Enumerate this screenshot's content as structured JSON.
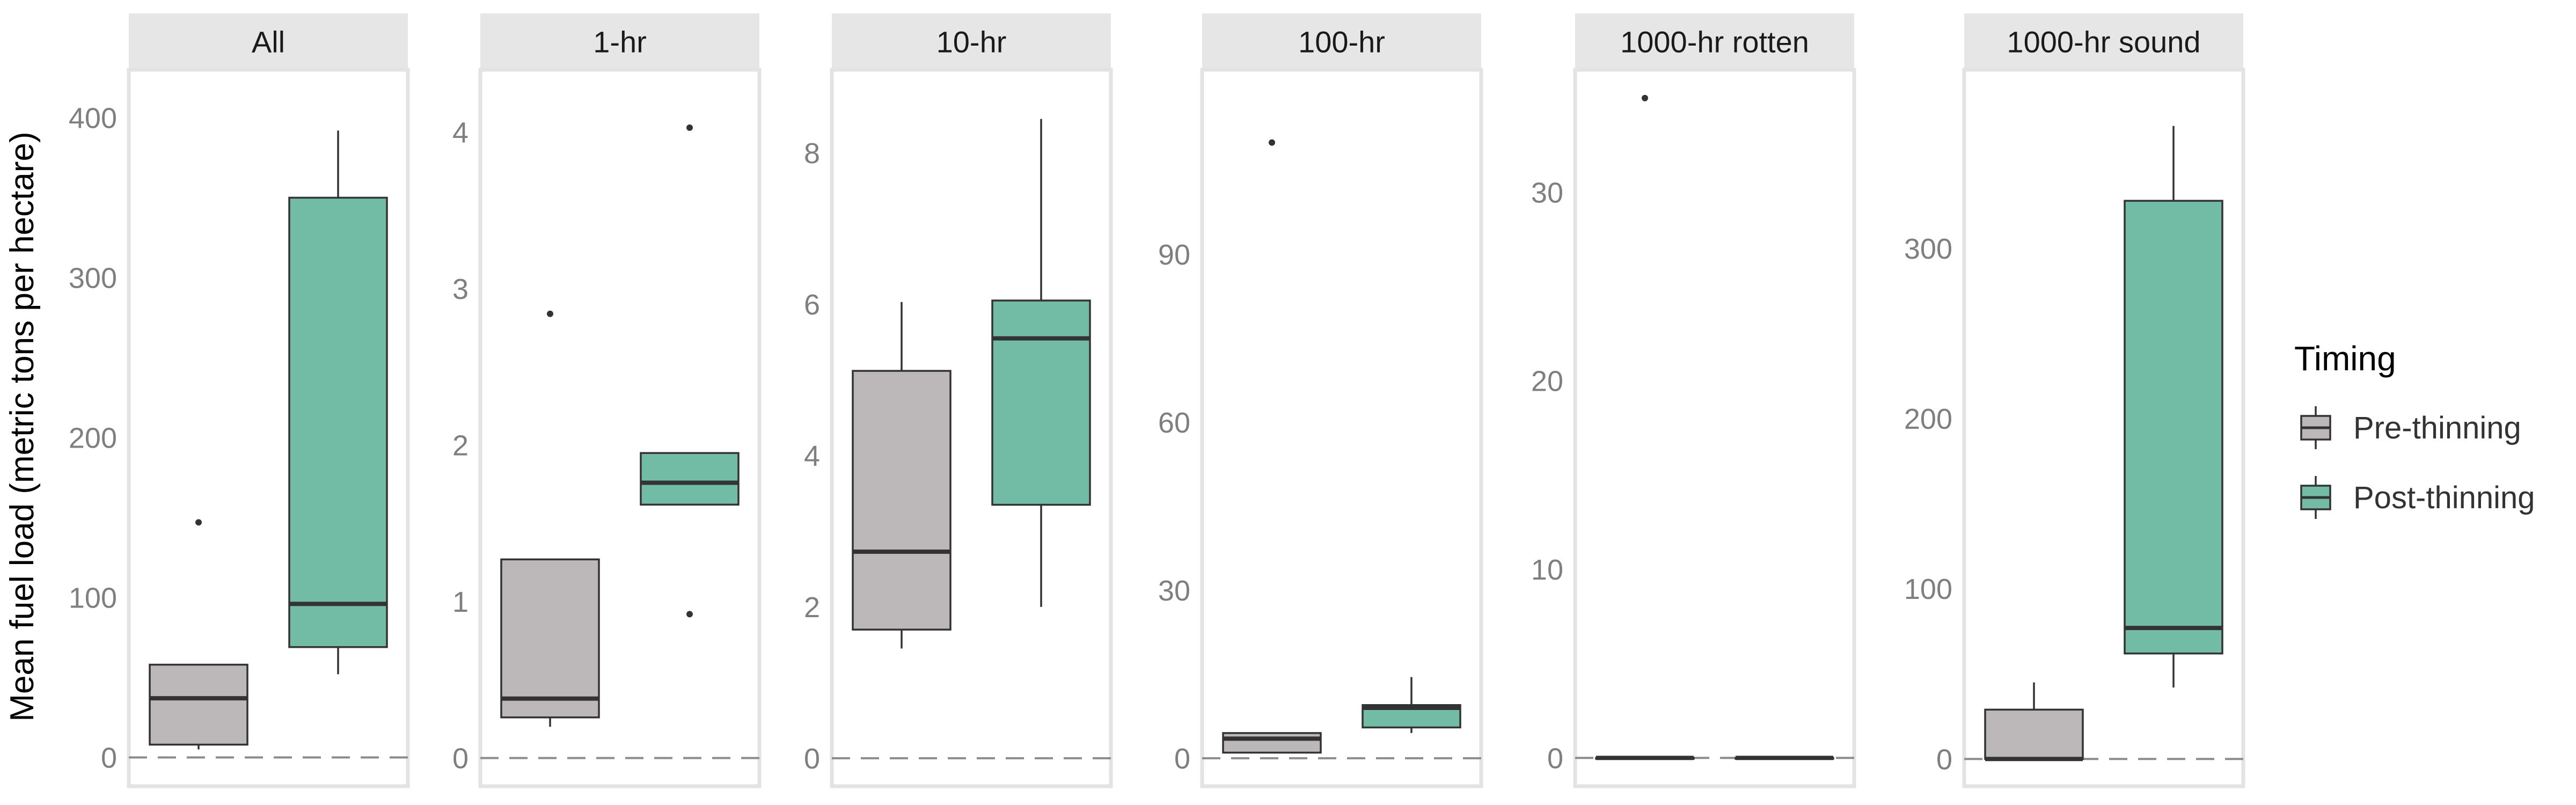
{
  "chart_data": {
    "type": "box",
    "ylabel": "Mean fuel load (metric tons per hectare)",
    "legend": {
      "title": "Timing",
      "placement": "right",
      "entries": [
        {
          "label": "Pre-thinning",
          "color": "#bcb8b9"
        },
        {
          "label": "Post-thinning",
          "color": "#72bca6"
        }
      ]
    },
    "reference_line": {
      "y": 0,
      "style": "dashed",
      "color": "#8c8c8c"
    },
    "panels": [
      {
        "label": "All",
        "ylim": [
          -18,
          430
        ],
        "yticks": [
          0,
          100,
          200,
          300,
          400
        ],
        "boxes": [
          {
            "group": "Pre-thinning",
            "whisker_low": 5,
            "q1": 8,
            "median": 37,
            "q3": 58,
            "whisker_high": 58,
            "outliers": [
              147
            ]
          },
          {
            "group": "Post-thinning",
            "whisker_low": 52,
            "q1": 69,
            "median": 96,
            "q3": 350,
            "whisker_high": 392,
            "outliers": []
          }
        ]
      },
      {
        "label": "1-hr",
        "ylim": [
          -0.18,
          4.4
        ],
        "yticks": [
          0,
          1,
          2,
          3,
          4
        ],
        "boxes": [
          {
            "group": "Pre-thinning",
            "whisker_low": 0.2,
            "q1": 0.26,
            "median": 0.38,
            "q3": 1.27,
            "whisker_high": 1.27,
            "outliers": [
              2.84
            ]
          },
          {
            "group": "Post-thinning",
            "whisker_low": 1.62,
            "q1": 1.62,
            "median": 1.76,
            "q3": 1.95,
            "whisker_high": 1.95,
            "outliers": [
              4.03,
              0.92
            ]
          }
        ]
      },
      {
        "label": "10-hr",
        "ylim": [
          -0.37,
          9.1
        ],
        "yticks": [
          0,
          2,
          4,
          6,
          8
        ],
        "boxes": [
          {
            "group": "Pre-thinning",
            "whisker_low": 1.45,
            "q1": 1.7,
            "median": 2.73,
            "q3": 5.12,
            "whisker_high": 6.03,
            "outliers": []
          },
          {
            "group": "Post-thinning",
            "whisker_low": 2.0,
            "q1": 3.35,
            "median": 5.55,
            "q3": 6.05,
            "whisker_high": 8.45,
            "outliers": []
          }
        ]
      },
      {
        "label": "100-hr",
        "ylim": [
          -5,
          123
        ],
        "yticks": [
          0,
          30,
          60,
          90
        ],
        "boxes": [
          {
            "group": "Pre-thinning",
            "whisker_low": 1,
            "q1": 1,
            "median": 3.5,
            "q3": 4.5,
            "whisker_high": 4.5,
            "outliers": [
              110
            ]
          },
          {
            "group": "Post-thinning",
            "whisker_low": 4.5,
            "q1": 5.5,
            "median": 9,
            "q3": 9.5,
            "whisker_high": 14.5,
            "outliers": []
          }
        ]
      },
      {
        "label": "1000-hr rotten",
        "ylim": [
          -1.5,
          36.5
        ],
        "yticks": [
          0,
          10,
          20,
          30
        ],
        "boxes": [
          {
            "group": "Pre-thinning",
            "whisker_low": 0,
            "q1": 0,
            "median": 0,
            "q3": 0,
            "whisker_high": 0,
            "outliers": [
              35
            ]
          },
          {
            "group": "Post-thinning",
            "whisker_low": 0,
            "q1": 0,
            "median": 0,
            "q3": 0,
            "whisker_high": 0,
            "outliers": []
          }
        ]
      },
      {
        "label": "1000-hr sound",
        "ylim": [
          -16,
          405
        ],
        "yticks": [
          0,
          100,
          200,
          300
        ],
        "boxes": [
          {
            "group": "Pre-thinning",
            "whisker_low": 0,
            "q1": 0,
            "median": 0,
            "q3": 29,
            "whisker_high": 45,
            "outliers": []
          },
          {
            "group": "Post-thinning",
            "whisker_low": 42,
            "q1": 62,
            "median": 77,
            "q3": 328,
            "whisker_high": 372,
            "outliers": []
          }
        ]
      }
    ]
  }
}
